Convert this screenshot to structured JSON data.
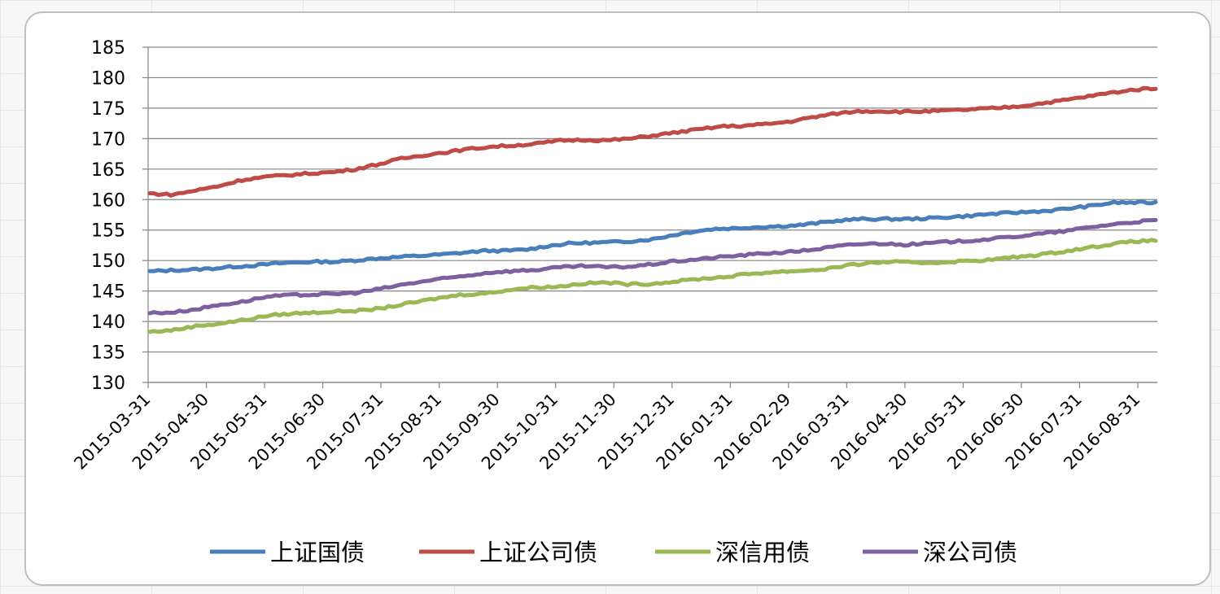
{
  "chart_data": {
    "type": "line",
    "title": "",
    "xlabel": "",
    "ylabel": "",
    "ylim": [
      130,
      185
    ],
    "yticks": [
      130,
      135,
      140,
      145,
      150,
      155,
      160,
      165,
      170,
      175,
      180,
      185
    ],
    "x_tick_labels": [
      "2015-03-31",
      "2015-04-30",
      "2015-05-31",
      "2015-06-30",
      "2015-07-31",
      "2015-08-31",
      "2015-09-30",
      "2015-10-31",
      "2015-11-30",
      "2015-12-31",
      "2016-01-31",
      "2016-02-29",
      "2016-03-31",
      "2016-04-30",
      "2016-05-31",
      "2016-06-30",
      "2016-07-31",
      "2016-08-31"
    ],
    "grid": "horizontal",
    "legend_position": "bottom",
    "series": [
      {
        "name": "上证国债",
        "color": "#4a7ebb",
        "values": [
          148.2,
          148.4,
          148.5,
          148.7,
          149.0,
          149.2,
          149.5,
          149.7,
          149.8,
          149.8,
          150.1,
          150.4,
          150.6,
          150.8,
          151.0,
          151.3,
          151.6,
          151.6,
          151.8,
          152.4,
          152.8,
          152.9,
          153.0,
          153.2,
          153.5,
          154.2,
          154.8,
          155.2,
          155.3,
          155.5,
          155.6,
          155.8,
          156.2,
          156.6,
          156.8,
          156.8,
          156.8,
          156.9,
          157.1,
          157.3,
          157.6,
          157.8,
          158.0,
          158.2,
          158.6,
          159.0,
          159.5,
          159.5,
          159.5
        ]
      },
      {
        "name": "上证公司债",
        "color": "#be4b48",
        "values": [
          161.0,
          160.8,
          161.5,
          162.2,
          163.2,
          163.7,
          164.0,
          164.3,
          164.5,
          165.0,
          165.8,
          166.7,
          167.3,
          167.8,
          168.3,
          168.7,
          168.9,
          169.2,
          169.7,
          169.8,
          169.7,
          170.0,
          170.5,
          171.0,
          171.5,
          172.0,
          172.1,
          172.4,
          172.8,
          173.5,
          174.1,
          174.5,
          174.5,
          174.4,
          174.5,
          174.6,
          174.8,
          175.0,
          175.3,
          175.8,
          176.3,
          176.9,
          177.5,
          178.0,
          178.3
        ]
      },
      {
        "name": "深信用债",
        "color": "#98b954",
        "values": [
          138.3,
          138.6,
          139.3,
          139.7,
          140.3,
          141.0,
          141.3,
          141.5,
          141.7,
          141.8,
          142.4,
          143.1,
          143.8,
          144.4,
          144.6,
          145.2,
          145.6,
          145.7,
          146.2,
          146.4,
          146.1,
          146.2,
          146.6,
          147.0,
          147.3,
          147.8,
          148.1,
          148.3,
          148.5,
          149.1,
          149.6,
          149.8,
          149.6,
          149.7,
          149.9,
          150.1,
          150.5,
          150.9,
          151.4,
          152.0,
          152.6,
          153.1,
          153.3
        ]
      },
      {
        "name": "深公司债",
        "color": "#7d60a0",
        "values": [
          141.4,
          141.5,
          142.0,
          142.7,
          143.2,
          144.0,
          144.3,
          144.4,
          144.5,
          144.7,
          145.3,
          146.0,
          146.6,
          147.1,
          147.6,
          148.1,
          148.3,
          148.5,
          148.9,
          149.1,
          148.9,
          149.0,
          149.4,
          149.9,
          150.2,
          150.6,
          150.9,
          151.2,
          151.4,
          151.8,
          152.3,
          152.7,
          152.8,
          152.6,
          152.8,
          153.1,
          153.3,
          153.6,
          154.0,
          154.4,
          154.8,
          155.4,
          155.9,
          156.3,
          156.6
        ]
      }
    ]
  }
}
